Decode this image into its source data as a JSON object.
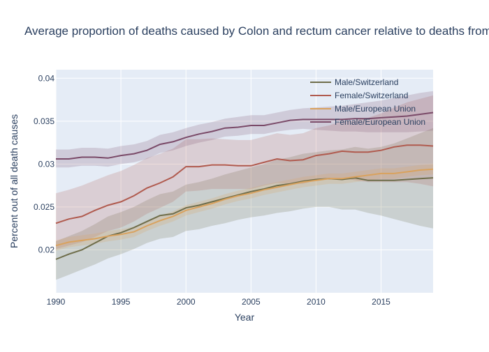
{
  "chart_data": {
    "type": "line",
    "title": "Average proportion of deaths caused by Colon and rectum cancer relative to deaths from all causes",
    "xlabel": "Year",
    "ylabel": "Percent out of all death causes",
    "xlim": [
      1990,
      2019
    ],
    "ylim": [
      0.015,
      0.041
    ],
    "x_ticks": [
      1990,
      1995,
      2000,
      2005,
      2010,
      2015
    ],
    "y_ticks": [
      0.02,
      0.025,
      0.03,
      0.035,
      0.04
    ],
    "x_tick_labels": [
      "1990",
      "1995",
      "2000",
      "2005",
      "2010",
      "2015"
    ],
    "y_tick_labels": [
      "0.02",
      "0.025",
      "0.03",
      "0.035",
      "0.04"
    ],
    "grid": true,
    "legend_position": "top-right",
    "x": [
      1990,
      1991,
      1992,
      1993,
      1994,
      1995,
      1996,
      1997,
      1998,
      1999,
      2000,
      2001,
      2002,
      2003,
      2004,
      2005,
      2006,
      2007,
      2008,
      2009,
      2010,
      2011,
      2012,
      2013,
      2014,
      2015,
      2016,
      2017,
      2018,
      2019
    ],
    "series": [
      {
        "name": "Male/Switzerland",
        "color": "#6e6d4a",
        "values": [
          0.0189,
          0.0195,
          0.02,
          0.0208,
          0.0216,
          0.022,
          0.0226,
          0.0233,
          0.024,
          0.0242,
          0.0249,
          0.0252,
          0.0256,
          0.026,
          0.0264,
          0.0268,
          0.0271,
          0.0275,
          0.0277,
          0.028,
          0.0282,
          0.0283,
          0.0282,
          0.0284,
          0.0281,
          0.0281,
          0.0281,
          0.0282,
          0.0283,
          0.0284
        ],
        "lower": [
          0.0165,
          0.0171,
          0.0177,
          0.0183,
          0.019,
          0.0195,
          0.0201,
          0.0208,
          0.0213,
          0.0215,
          0.0222,
          0.0224,
          0.0228,
          0.0231,
          0.0235,
          0.0238,
          0.024,
          0.0243,
          0.0245,
          0.0248,
          0.025,
          0.025,
          0.0247,
          0.0247,
          0.0243,
          0.024,
          0.0236,
          0.0232,
          0.0228,
          0.0225
        ],
        "upper": [
          0.021,
          0.0216,
          0.0222,
          0.023,
          0.0239,
          0.0244,
          0.025,
          0.0258,
          0.0265,
          0.0268,
          0.0276,
          0.0279,
          0.0283,
          0.0288,
          0.0292,
          0.0296,
          0.03,
          0.0305,
          0.0308,
          0.0312,
          0.0314,
          0.0316,
          0.0317,
          0.032,
          0.0318,
          0.032,
          0.0324,
          0.033,
          0.0336,
          0.0342
        ],
        "fill": "rgba(110,109,74,0.22)"
      },
      {
        "name": "Female/Switzerland",
        "color": "#b05a4e",
        "values": [
          0.0231,
          0.0236,
          0.0239,
          0.0246,
          0.0252,
          0.0256,
          0.0263,
          0.0272,
          0.0278,
          0.0285,
          0.0297,
          0.0297,
          0.0299,
          0.0299,
          0.0298,
          0.0298,
          0.0302,
          0.0306,
          0.0304,
          0.0305,
          0.031,
          0.0312,
          0.0315,
          0.0314,
          0.0314,
          0.0316,
          0.032,
          0.0322,
          0.0322,
          0.0321
        ],
        "lower": [
          0.0201,
          0.0205,
          0.0209,
          0.0215,
          0.0222,
          0.0226,
          0.0233,
          0.0242,
          0.0249,
          0.0256,
          0.0268,
          0.0269,
          0.0271,
          0.0271,
          0.0271,
          0.0271,
          0.0275,
          0.0278,
          0.0277,
          0.0277,
          0.0281,
          0.0282,
          0.0284,
          0.0281,
          0.0279,
          0.0279,
          0.0279,
          0.0279,
          0.0277,
          0.0274
        ],
        "upper": [
          0.0266,
          0.027,
          0.0275,
          0.0281,
          0.0287,
          0.0292,
          0.0299,
          0.0307,
          0.0312,
          0.0318,
          0.0329,
          0.0329,
          0.033,
          0.0329,
          0.0328,
          0.0328,
          0.0332,
          0.0336,
          0.0334,
          0.0336,
          0.0342,
          0.0345,
          0.035,
          0.0351,
          0.0354,
          0.0359,
          0.0366,
          0.0372,
          0.0376,
          0.038
        ],
        "fill": "rgba(176,90,78,0.20)"
      },
      {
        "name": "Male/European Union",
        "color": "#d9a25e",
        "values": [
          0.0205,
          0.0209,
          0.0211,
          0.0213,
          0.0216,
          0.0218,
          0.0221,
          0.0228,
          0.0234,
          0.0239,
          0.0246,
          0.025,
          0.0254,
          0.0259,
          0.0263,
          0.0266,
          0.027,
          0.0273,
          0.0276,
          0.0279,
          0.0281,
          0.0283,
          0.0283,
          0.0285,
          0.0287,
          0.0289,
          0.0289,
          0.0291,
          0.0293,
          0.0294
        ],
        "lower": [
          0.0199,
          0.0203,
          0.0205,
          0.0207,
          0.021,
          0.0212,
          0.0215,
          0.0222,
          0.0228,
          0.0233,
          0.024,
          0.0244,
          0.0248,
          0.0253,
          0.0257,
          0.026,
          0.0264,
          0.0267,
          0.027,
          0.0273,
          0.0275,
          0.0277,
          0.0277,
          0.0279,
          0.0281,
          0.0283,
          0.0283,
          0.0285,
          0.0287,
          0.0288
        ],
        "upper": [
          0.0211,
          0.0215,
          0.0217,
          0.0219,
          0.0222,
          0.0224,
          0.0227,
          0.0234,
          0.024,
          0.0245,
          0.0252,
          0.0256,
          0.026,
          0.0265,
          0.0269,
          0.0272,
          0.0276,
          0.0279,
          0.0282,
          0.0285,
          0.0287,
          0.0289,
          0.0289,
          0.0291,
          0.0293,
          0.0295,
          0.0295,
          0.0297,
          0.0299,
          0.03
        ],
        "fill": "rgba(217,162,94,0.22)"
      },
      {
        "name": "Female/European Union",
        "color": "#7a4a68",
        "values": [
          0.0306,
          0.0306,
          0.0308,
          0.0308,
          0.0307,
          0.031,
          0.0312,
          0.0316,
          0.0323,
          0.0326,
          0.0331,
          0.0335,
          0.0338,
          0.0342,
          0.0343,
          0.0345,
          0.0345,
          0.0348,
          0.0351,
          0.0352,
          0.0352,
          0.0352,
          0.0352,
          0.0353,
          0.0353,
          0.0354,
          0.0355,
          0.0356,
          0.0358,
          0.036
        ],
        "lower": [
          0.0296,
          0.0296,
          0.0298,
          0.0298,
          0.0297,
          0.03,
          0.0302,
          0.0306,
          0.0313,
          0.0316,
          0.0321,
          0.0325,
          0.0328,
          0.0332,
          0.0333,
          0.0335,
          0.0335,
          0.0338,
          0.034,
          0.0341,
          0.034,
          0.0339,
          0.0338,
          0.0338,
          0.0337,
          0.0337,
          0.0337,
          0.0337,
          0.0338,
          0.0339
        ],
        "upper": [
          0.0317,
          0.0317,
          0.0319,
          0.0319,
          0.0318,
          0.0321,
          0.0323,
          0.0327,
          0.0334,
          0.0337,
          0.0342,
          0.0346,
          0.0349,
          0.0353,
          0.0355,
          0.0357,
          0.0357,
          0.036,
          0.0363,
          0.0365,
          0.0366,
          0.0367,
          0.0368,
          0.037,
          0.0372,
          0.0374,
          0.0377,
          0.038,
          0.0383,
          0.0385
        ],
        "fill": "rgba(122,74,104,0.20)"
      }
    ],
    "colors": {
      "plot_background": "#e5ecf6",
      "grid": "#ffffff",
      "text": "#2a3f5f"
    }
  }
}
